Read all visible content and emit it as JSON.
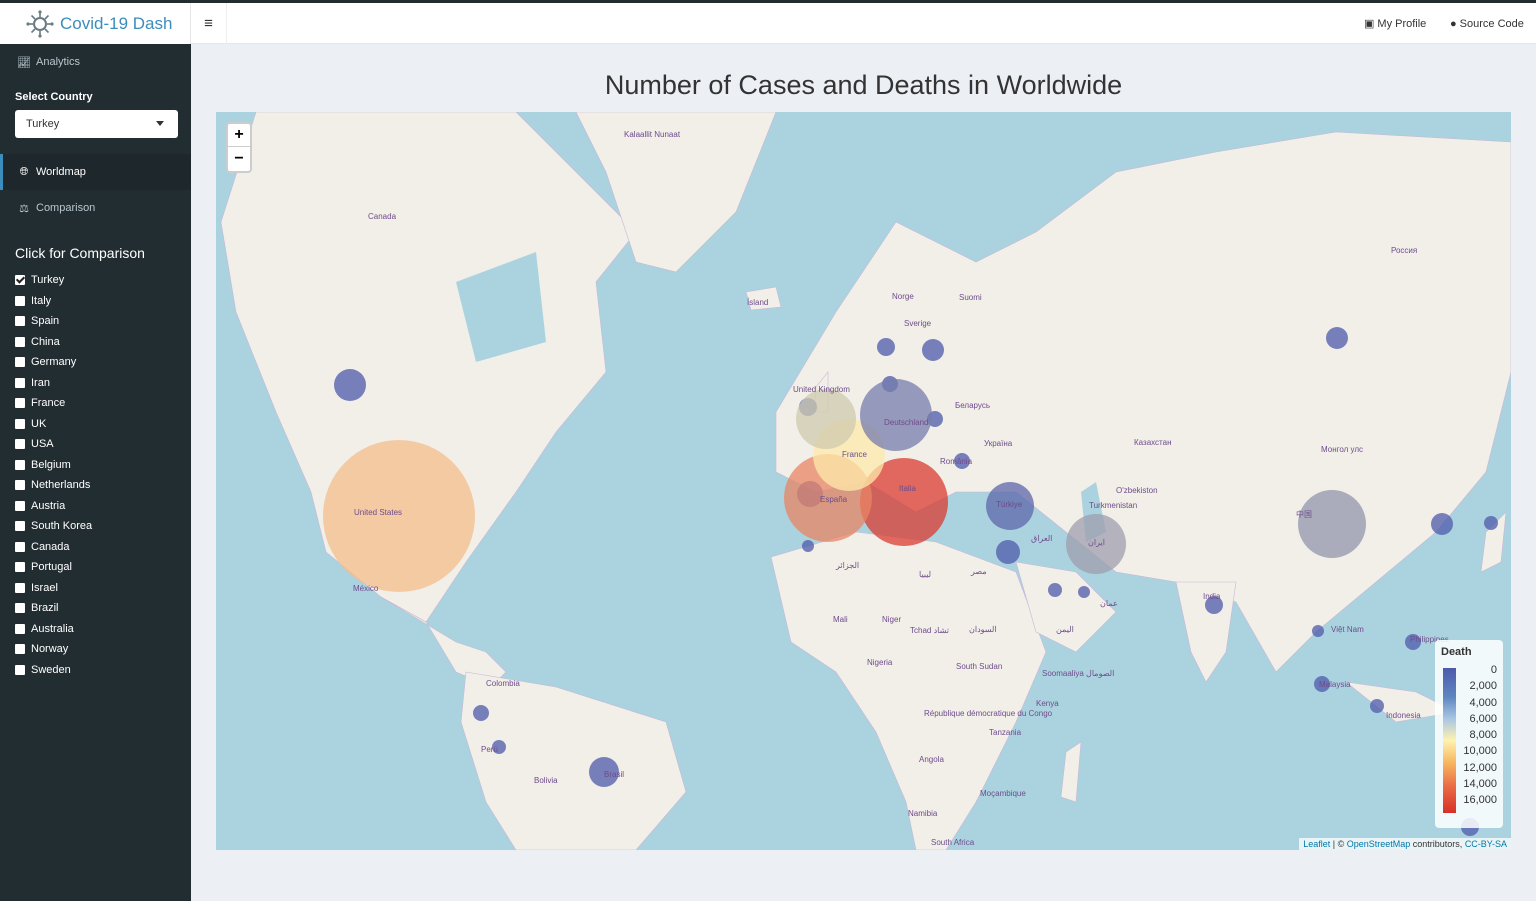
{
  "app": {
    "title": "Covid-19 Dash"
  },
  "navbar": {
    "my_profile": "My Profile",
    "source_code": "Source Code"
  },
  "sidebar": {
    "analytics": "Analytics",
    "select_label": "Select Country",
    "selected_country": "Turkey",
    "worldmap": "Worldmap",
    "comparison": "Comparison",
    "comparison_title": "Click for Comparison",
    "countries": [
      {
        "label": "Turkey",
        "checked": true
      },
      {
        "label": "Italy",
        "checked": false
      },
      {
        "label": "Spain",
        "checked": false
      },
      {
        "label": "China",
        "checked": false
      },
      {
        "label": "Germany",
        "checked": false
      },
      {
        "label": "Iran",
        "checked": false
      },
      {
        "label": "France",
        "checked": false
      },
      {
        "label": "UK",
        "checked": false
      },
      {
        "label": "USA",
        "checked": false
      },
      {
        "label": "Belgium",
        "checked": false
      },
      {
        "label": "Netherlands",
        "checked": false
      },
      {
        "label": "Austria",
        "checked": false
      },
      {
        "label": "South Korea",
        "checked": false
      },
      {
        "label": "Canada",
        "checked": false
      },
      {
        "label": "Portugal",
        "checked": false
      },
      {
        "label": "Israel",
        "checked": false
      },
      {
        "label": "Brazil",
        "checked": false
      },
      {
        "label": "Australia",
        "checked": false
      },
      {
        "label": "Norway",
        "checked": false
      },
      {
        "label": "Sweden",
        "checked": false
      }
    ]
  },
  "main": {
    "title": "Number of Cases and Deaths in Worldwide"
  },
  "map": {
    "zoom_in": "+",
    "zoom_out": "−",
    "legend_title": "Death",
    "legend_labels": [
      "0",
      "2,000",
      "4,000",
      "6,000",
      "8,000",
      "10,000",
      "12,000",
      "14,000",
      "16,000"
    ],
    "attribution": {
      "leaflet": "Leaflet",
      "sep": " | © ",
      "osm": "OpenStreetMap",
      "contrib": " contributors, ",
      "license": "CC-BY-SA"
    },
    "place_labels": [
      "Kalaallit Nunaat",
      "Canada",
      "Россия",
      "Ísland",
      "Norge",
      "Suomi",
      "Sverige",
      "United Kingdom",
      "Deutschland",
      "France",
      "España",
      "Italia",
      "Türkiye",
      "ایران",
      "中国",
      "United States",
      "México",
      "Brasil",
      "Colombia",
      "Perú",
      "Bolivia",
      "India",
      "Монгол улс",
      "Казахстан",
      "Mali",
      "Niger",
      "Nigeria",
      "Tchad تشاد",
      "South Sudan",
      "Kenya",
      "République démocratique du Congo",
      "Tanzania",
      "Angola",
      "Namibia",
      "South Africa",
      "Moçambique",
      "Indonesia",
      "Việt Nam",
      "Malaysia",
      "Philippines",
      "Soomaaliya الصومال",
      "Беларусь",
      "Україна",
      "România",
      "Turkmenistan",
      "O'zbekiston",
      "الجزائر",
      "ليبيا",
      "السودان",
      "مصر",
      "اليمن",
      "عمان",
      "العراق"
    ],
    "color_scale": {
      "low": "#4d5aaa",
      "mid": "#fff2b0",
      "high": "#d73027"
    },
    "death_points": [
      {
        "country": "USA",
        "deaths": 10800
      },
      {
        "country": "Italy",
        "deaths": 16500
      },
      {
        "country": "Spain",
        "deaths": 13300
      },
      {
        "country": "France",
        "deaths": 8900
      },
      {
        "country": "UK",
        "deaths": 6200
      },
      {
        "country": "Iran",
        "deaths": 3800
      },
      {
        "country": "China",
        "deaths": 3300
      },
      {
        "country": "Germany",
        "deaths": 1900
      },
      {
        "country": "Turkey",
        "deaths": 700
      }
    ]
  }
}
